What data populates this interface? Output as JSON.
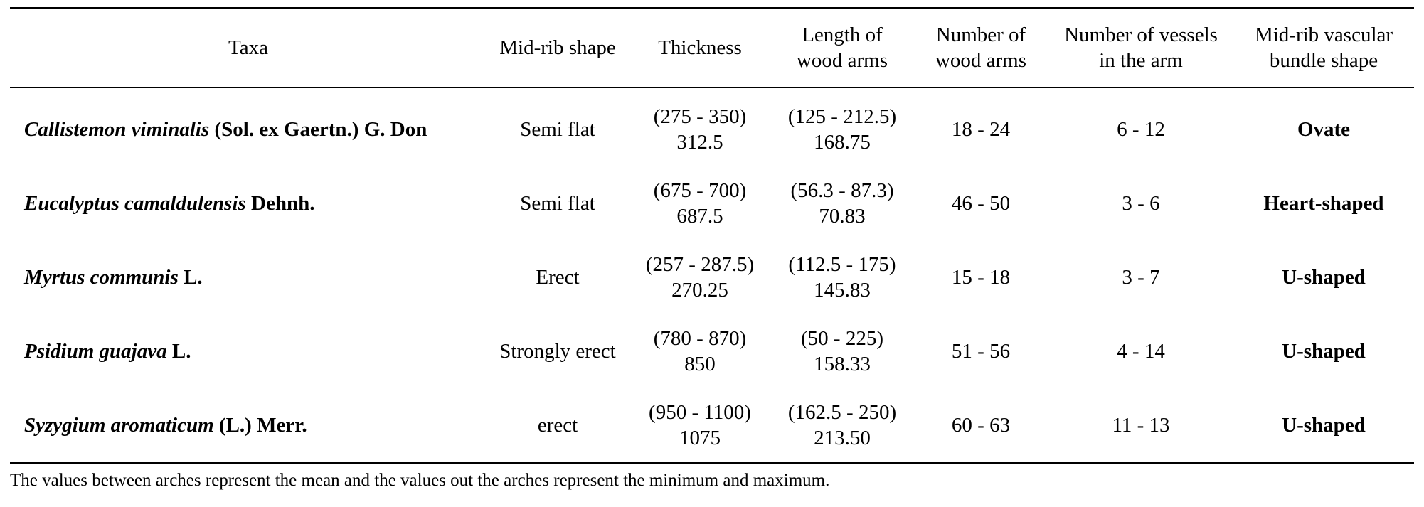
{
  "table": {
    "headers": [
      {
        "lines": [
          "Taxa"
        ]
      },
      {
        "lines": [
          "Mid-rib shape"
        ]
      },
      {
        "lines": [
          "Thickness"
        ]
      },
      {
        "lines": [
          "Length of",
          "wood arms"
        ]
      },
      {
        "lines": [
          "Number of",
          "wood arms"
        ]
      },
      {
        "lines": [
          "Number of vessels",
          "in the arm"
        ]
      },
      {
        "lines": [
          "Mid-rib vascular",
          "bundle shape"
        ]
      }
    ],
    "rows": [
      {
        "taxa_italic": "Callistemon viminalis",
        "taxa_author": " (Sol. ex Gaertn.) G. Don",
        "midrib_shape": "Semi flat",
        "thickness_range": "(275 - 350)",
        "thickness_mean": "312.5",
        "length_range": "(125 - 212.5)",
        "length_mean": "168.75",
        "num_arms": "18 - 24",
        "num_vessels": "6 - 12",
        "bundle_shape": "Ovate"
      },
      {
        "taxa_italic": "Eucalyptus camaldulensis",
        "taxa_author": " Dehnh.",
        "midrib_shape": "Semi flat",
        "thickness_range": "(675 - 700)",
        "thickness_mean": "687.5",
        "length_range": "(56.3 - 87.3)",
        "length_mean": "70.83",
        "num_arms": "46 - 50",
        "num_vessels": "3 - 6",
        "bundle_shape": "Heart-shaped"
      },
      {
        "taxa_italic": "Myrtus communis",
        "taxa_author": " L.",
        "midrib_shape": "Erect",
        "thickness_range": "(257 - 287.5)",
        "thickness_mean": "270.25",
        "length_range": "(112.5 - 175)",
        "length_mean": "145.83",
        "num_arms": "15 - 18",
        "num_vessels": "3 - 7",
        "bundle_shape": "U-shaped"
      },
      {
        "taxa_italic": "Psidium guajava",
        "taxa_author": " L.",
        "midrib_shape": "Strongly erect",
        "thickness_range": "(780 - 870)",
        "thickness_mean": "850",
        "length_range": "(50 - 225)",
        "length_mean": "158.33",
        "num_arms": "51 - 56",
        "num_vessels": "4 - 14",
        "bundle_shape": "U-shaped"
      },
      {
        "taxa_italic": "Syzygium aromaticum",
        "taxa_author": " (L.) Merr.",
        "midrib_shape": "erect",
        "thickness_range": "(950 - 1100)",
        "thickness_mean": "1075",
        "length_range": "(162.5 - 250)",
        "length_mean": "213.50",
        "num_arms": "60 - 63",
        "num_vessels": "11 - 13",
        "bundle_shape": "U-shaped"
      }
    ]
  },
  "footnote": "The values between arches represent the mean and the values out the arches represent the minimum and maximum."
}
